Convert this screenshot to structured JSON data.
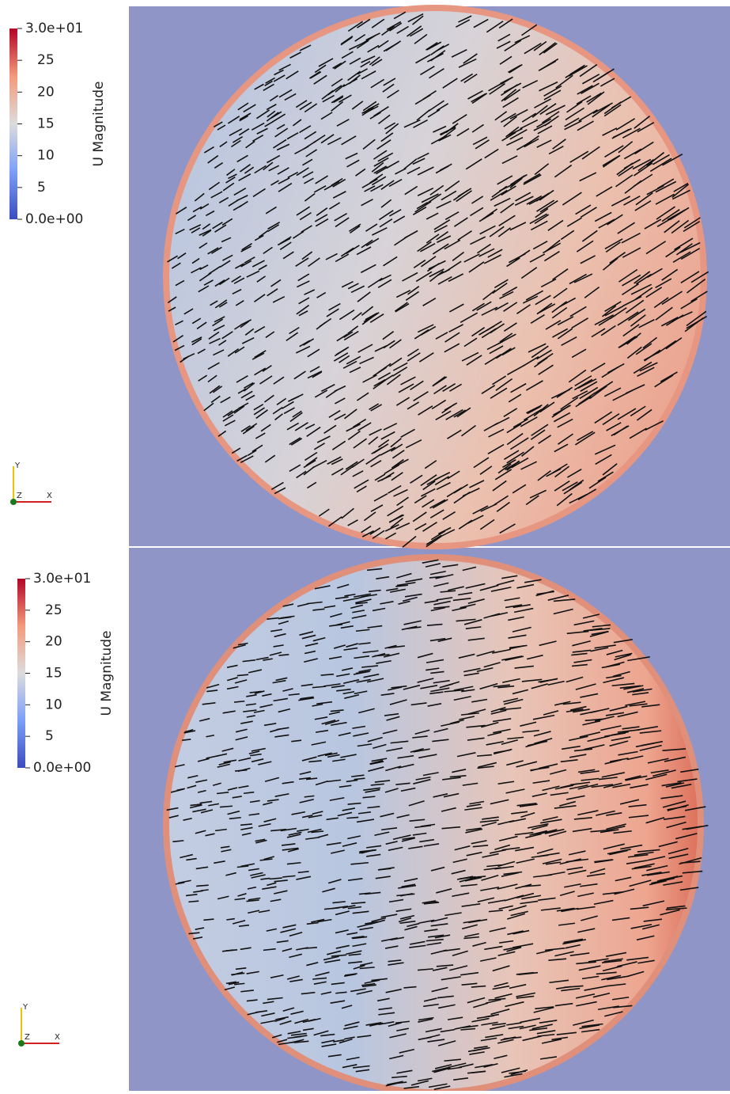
{
  "panels": [
    {
      "colorbar": {
        "title": "U Magnitude",
        "range": [
          0,
          30
        ],
        "ticks": [
          {
            "value": 30,
            "label": "3.0e+01"
          },
          25,
          20,
          15,
          10,
          5,
          {
            "value": 0,
            "label": "0.0e+00"
          }
        ]
      },
      "axes": {
        "y": "Y",
        "z": "Z",
        "x": "X"
      }
    },
    {
      "colorbar": {
        "title": "U Magnitude",
        "range": [
          0,
          30
        ],
        "ticks": [
          {
            "value": 30,
            "label": "3.0e+01"
          },
          25,
          20,
          15,
          10,
          5,
          {
            "value": 0,
            "label": "0.0e+00"
          }
        ]
      },
      "axes": {
        "y": "Y",
        "z": "Z",
        "x": "X"
      }
    }
  ]
}
